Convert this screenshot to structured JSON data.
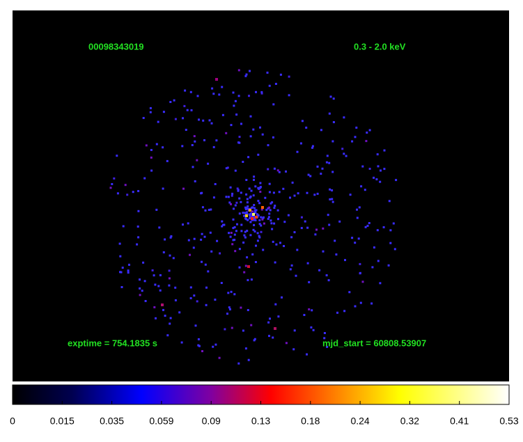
{
  "image": {
    "obsid": "00098343019",
    "band": "0.3 - 2.0 keV",
    "exptime": "exptime = 754.1835 s",
    "mjd_start": "mjd_start = 60808.53907"
  },
  "colorbar": {
    "ticks": [
      0,
      0.015,
      0.035,
      0.059,
      0.09,
      0.13,
      0.18,
      0.24,
      0.32,
      0.41,
      0.53
    ]
  }
}
